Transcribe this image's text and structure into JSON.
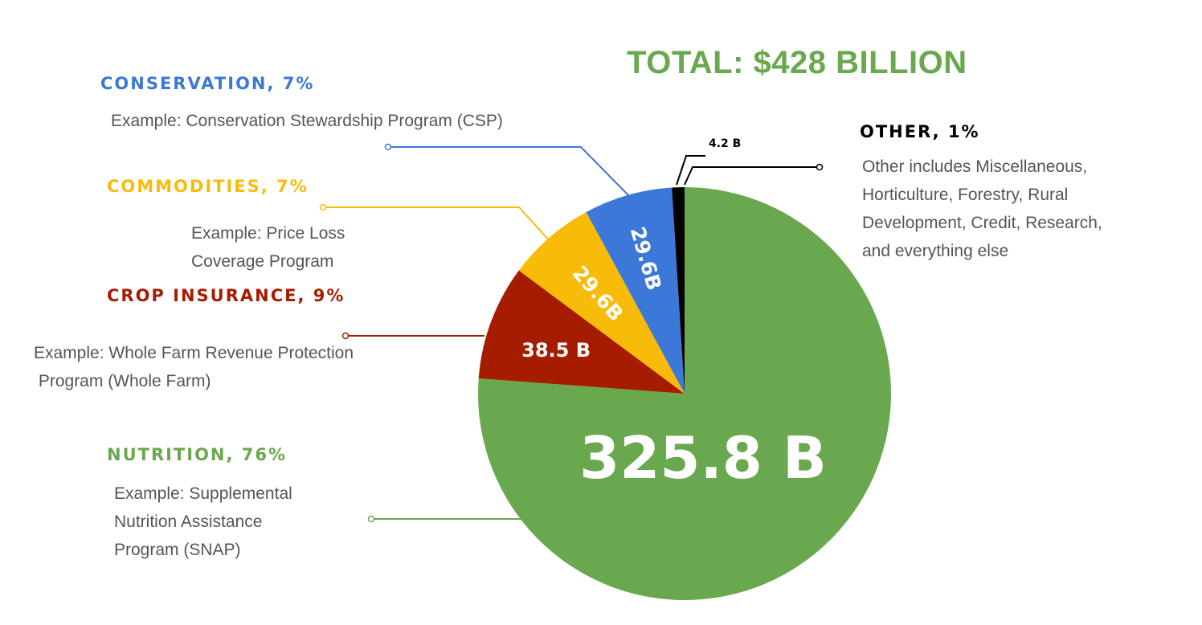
{
  "title": "TOTAL: $428 BILLION",
  "colors": {
    "nutrition": "#6aa84f",
    "crop_insurance": "#a61c00",
    "commodities": "#f9bb0a",
    "conservation": "#3c78d8",
    "other": "#000000",
    "description_text": "#555555"
  },
  "categories": {
    "conservation": {
      "label": "CONSERVATION, 7%",
      "lines": [
        "Example: Conservation Stewardship Program (CSP)"
      ]
    },
    "commodities": {
      "label": "COMMODITIES, 7%",
      "lines": [
        "Example: Price Loss",
        "Coverage Program"
      ]
    },
    "crop_insurance": {
      "label": "CROP INSURANCE, 9%",
      "lines": [
        "Example: Whole Farm Revenue Protection",
        " Program (Whole Farm)"
      ]
    },
    "nutrition": {
      "label": "NUTRITION, 76%",
      "lines": [
        "Example: Supplemental",
        "Nutrition Assistance",
        "Program (SNAP)"
      ]
    },
    "other": {
      "label": "OTHER, 1%",
      "lines": [
        "Other includes Miscellaneous,",
        "Horticulture, Forestry, Rural",
        "Development, Credit, Research,",
        "and everything else"
      ]
    }
  },
  "chart_data": {
    "type": "pie",
    "title": "TOTAL: $428 BILLION",
    "unit": "billion USD",
    "start_angle_deg": 0,
    "direction": "clockwise",
    "slices": [
      {
        "key": "nutrition",
        "name": "NUTRITION, 76%",
        "value": 325.8,
        "value_label": "325.8 B",
        "color": "#6aa84f"
      },
      {
        "key": "crop_insurance",
        "name": "CROP INSURANCE, 9%",
        "value": 38.5,
        "value_label": "38.5 B",
        "color": "#a61c00"
      },
      {
        "key": "commodities",
        "name": "COMMODITIES, 7%",
        "value": 29.6,
        "value_label": "29.6B",
        "color": "#f9bb0a"
      },
      {
        "key": "conservation",
        "name": "CONSERVATION, 7%",
        "value": 29.6,
        "value_label": "29.6B",
        "color": "#3c78d8"
      },
      {
        "key": "other",
        "name": "OTHER, 1%",
        "value": 4.2,
        "value_label": "4.2 B",
        "color": "#000000"
      }
    ]
  }
}
